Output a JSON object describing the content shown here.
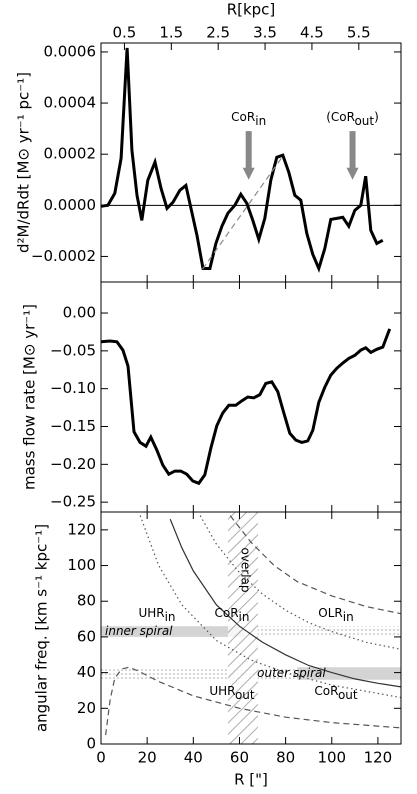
{
  "chart_data": [
    {
      "type": "line",
      "ylabel": "d²M/dRdt [M⊙ yr⁻¹ pc⁻¹]",
      "x2label": "R[kpc]",
      "x2lim": [
        0,
        6.4
      ],
      "x2ticks": [
        0.5,
        1.5,
        2.5,
        3.5,
        4.5,
        5.5
      ],
      "xlim": [
        0,
        130
      ],
      "ylim": [
        -0.0003,
        0.000635
      ],
      "yticks": [
        0.0006,
        0.0004,
        0.0002,
        {
          "value": 0,
          "label": "0.0000"
        },
        {
          "value": -0.0002,
          "label": "−0.0002"
        }
      ],
      "series": [
        {
          "color": "#000000",
          "x": [
            0,
            3,
            6,
            8.7,
            11.3,
            13.4,
            15.6,
            17.7,
            20.3,
            23.4,
            26,
            28.6,
            31.2,
            34.2,
            36.8,
            39,
            41.6,
            44.2,
            47.2,
            49.8,
            52.4,
            55,
            58,
            60.6,
            63.2,
            65.8,
            68.4,
            71,
            73.6,
            76.2,
            78.8,
            81.4,
            84,
            86.6,
            89.2,
            91.8,
            94.4,
            97,
            99.6,
            102.2,
            104.8,
            107.4,
            110,
            112.6,
            114.7,
            116.9,
            119.5,
            122.1
          ],
          "values": [
            -4e-06,
            0,
            4.7e-05,
            0.000184,
            0.000616,
            0.000216,
            3.9e-05,
            -5.9e-05,
            9.8e-05,
            0.000169,
            6.7e-05,
            -1.2e-05,
            1.2e-05,
            5.9e-05,
            7.8e-05,
            -1.2e-05,
            -0.000118,
            -0.000247,
            -0.000247,
            -0.000149,
            -8.2e-05,
            -3.1e-05,
            0,
            4.3e-05,
            8e-06,
            -5.9e-05,
            -0.000133,
            -5.1e-05,
            9.8e-05,
            0.000188,
            0.000196,
            0.000129,
            3.9e-05,
            2e-05,
            -0.00011,
            -0.000192,
            -0.000247,
            -0.000169,
            -5.5e-05,
            -5.1e-05,
            -4.7e-05,
            -8.2e-05,
            -2e-05,
            0,
            0.000114,
            -9.8e-05,
            -0.000149,
            -0.000137
          ]
        },
        {
          "color": "#888888",
          "dashed": true,
          "x": [
            44,
            79
          ],
          "values": [
            -0.00025,
            0.000195
          ]
        }
      ],
      "arrows": [
        {
          "x": 64,
          "y": [
            0.00029,
            0.0001
          ],
          "label": {
            "text": "CoR",
            "sub": "in"
          }
        },
        {
          "x": 109,
          "y": [
            0.00029,
            0.0001
          ],
          "label": {
            "text": "(CoR",
            "sub": "out",
            "after": ")"
          }
        }
      ]
    },
    {
      "type": "line",
      "ylabel": "mass flow rate [M⊙ yr⁻¹]",
      "xlim": [
        0,
        130
      ],
      "ylim": [
        -0.263,
        0.041
      ],
      "yticks": [
        {
          "value": 0,
          "label": "0.00"
        },
        {
          "value": -0.05,
          "label": "−0.05"
        },
        {
          "value": -0.1,
          "label": "−0.10"
        },
        {
          "value": -0.15,
          "label": "−0.15"
        },
        {
          "value": -0.2,
          "label": "−0.20"
        },
        {
          "value": -0.25,
          "label": "−0.25"
        }
      ],
      "series": [
        {
          "color": "#000000",
          "x": [
            0,
            3.9,
            6.9,
            9.5,
            11.7,
            14.3,
            16.9,
            19.5,
            21.6,
            24.2,
            26.8,
            29.4,
            32,
            34.6,
            37.2,
            39.8,
            42.4,
            45,
            47.6,
            50.2,
            52.8,
            55.4,
            58.4,
            61,
            63.6,
            66.2,
            68.8,
            71.4,
            74,
            76.6,
            79.2,
            81.8,
            84.4,
            87,
            89.6,
            91.8,
            94.4,
            97,
            99.6,
            102.2,
            104.8,
            107.4,
            110,
            112.6,
            114.7,
            116.9,
            119.5,
            122.1,
            125.1
          ],
          "values": [
            -0.038,
            -0.037,
            -0.038,
            -0.049,
            -0.07,
            -0.157,
            -0.171,
            -0.176,
            -0.164,
            -0.181,
            -0.201,
            -0.213,
            -0.209,
            -0.209,
            -0.213,
            -0.222,
            -0.225,
            -0.214,
            -0.179,
            -0.149,
            -0.132,
            -0.122,
            -0.122,
            -0.116,
            -0.111,
            -0.112,
            -0.108,
            -0.093,
            -0.091,
            -0.104,
            -0.132,
            -0.159,
            -0.168,
            -0.171,
            -0.169,
            -0.155,
            -0.118,
            -0.098,
            -0.082,
            -0.073,
            -0.066,
            -0.06,
            -0.056,
            -0.049,
            -0.046,
            -0.052,
            -0.048,
            -0.045,
            -0.021
          ]
        }
      ]
    },
    {
      "type": "line",
      "ylabel": "angular freq. [km s⁻¹ kpc⁻¹]",
      "xlabel": "R [\"]",
      "xlim": [
        0,
        130
      ],
      "xticks": [
        0,
        20,
        40,
        60,
        80,
        100,
        120
      ],
      "ylim": [
        0,
        130
      ],
      "yticks": [
        0,
        20,
        40,
        60,
        80,
        100,
        120
      ],
      "series": [
        {
          "color": "#333333",
          "x": [
            30,
            35,
            40,
            50,
            60,
            70,
            80,
            90,
            100,
            110,
            120,
            130
          ],
          "values": [
            126,
            110,
            97,
            78,
            66,
            57,
            50,
            44,
            40,
            36.5,
            34,
            32
          ]
        },
        {
          "color": "#555555",
          "dotted": true,
          "x": [
            17,
            25,
            35,
            50,
            65,
            80,
            100,
            130
          ],
          "values": [
            128,
            100,
            78,
            58,
            47,
            40,
            33,
            26
          ]
        },
        {
          "color": "#555555",
          "dotted": true,
          "x": [
            43,
            50,
            60,
            70,
            80,
            90,
            100,
            115,
            130
          ],
          "values": [
            128,
            112,
            96,
            84,
            75,
            68,
            63,
            57,
            53
          ]
        },
        {
          "color": "#555555",
          "dashed": true,
          "x": [
            56,
            65,
            75,
            85,
            100,
            115,
            130
          ],
          "values": [
            128,
            113,
            100,
            91,
            83,
            77,
            73
          ]
        },
        {
          "color": "#555555",
          "dashed": true,
          "x": [
            2,
            4,
            6,
            9,
            12,
            16,
            25,
            40,
            60,
            80,
            100,
            130
          ],
          "values": [
            5,
            25,
            37,
            42,
            43,
            41,
            35,
            27,
            20,
            15,
            12,
            9
          ]
        }
      ],
      "bands": [
        {
          "label": "inner spiral",
          "x": [
            0,
            62
          ],
          "y": [
            60,
            66
          ]
        },
        {
          "label": "outer spiral",
          "x": [
            85,
            130
          ],
          "y": [
            36,
            43
          ]
        }
      ],
      "hatch": {
        "label": "overlap",
        "x": [
          55,
          68
        ]
      },
      "labels": [
        {
          "text": "UHR",
          "sub": "in"
        },
        {
          "text": "CoR",
          "sub": "in"
        },
        {
          "text": "OLR",
          "sub": "in"
        },
        {
          "text": "UHR",
          "sub": "out"
        },
        {
          "text": "CoR",
          "sub": "out"
        }
      ]
    }
  ]
}
